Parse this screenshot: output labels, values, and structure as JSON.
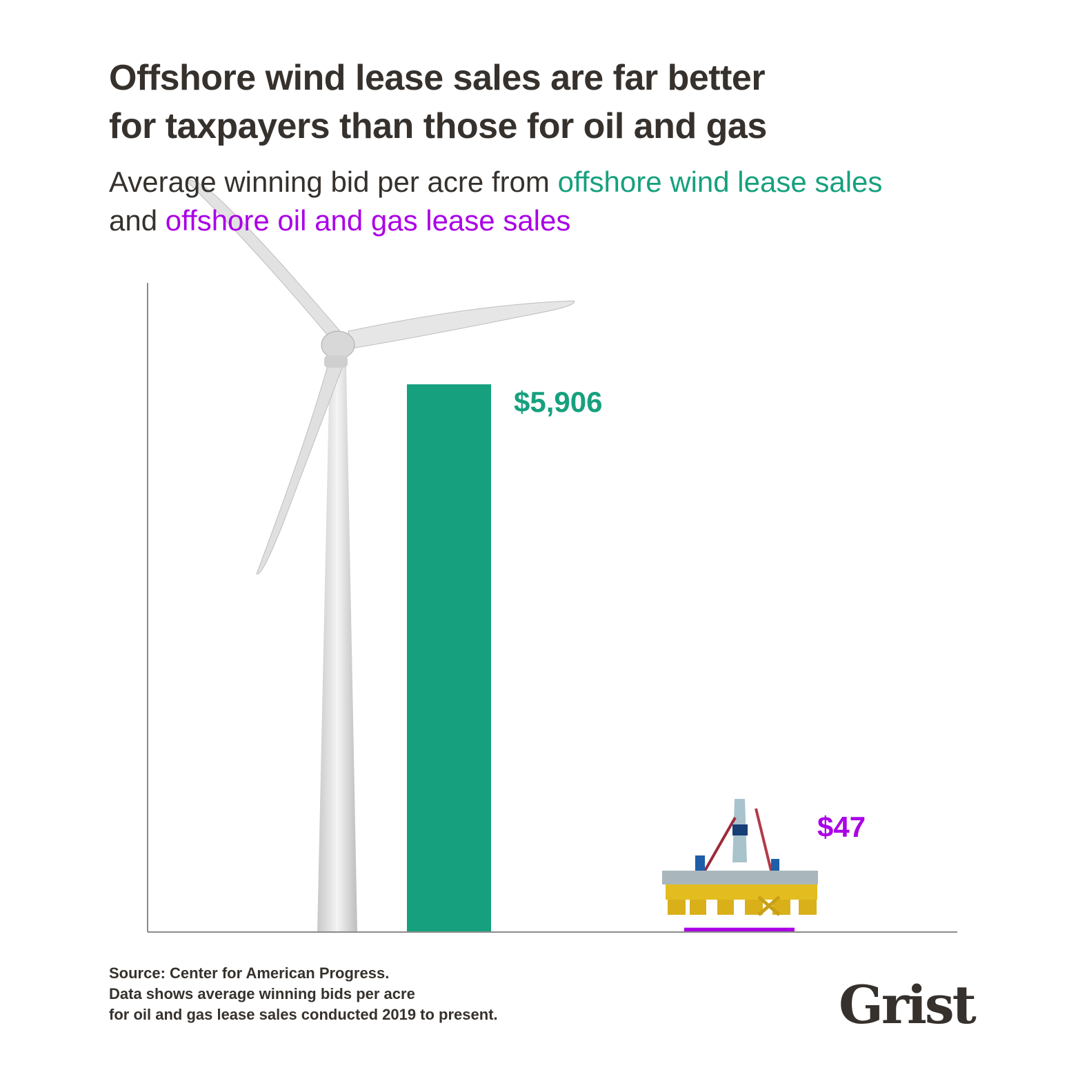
{
  "title_line1": "Offshore wind lease sales are far better",
  "title_line2": "for taxpayers than those for oil and gas",
  "subtitle": {
    "part1": "Average winning bid per acre from ",
    "wind": "offshore wind lease sales",
    "part2": "and ",
    "oil": "offshore oil and gas lease sales"
  },
  "chart_data": {
    "type": "bar",
    "categories": [
      "offshore wind lease sales",
      "offshore oil and gas lease sales"
    ],
    "values": [
      5906,
      47
    ],
    "data_labels": [
      "$5,906",
      "$47"
    ],
    "colors": [
      "#16a07e",
      "#aa00e6"
    ],
    "icons": [
      "wind-turbine-image",
      "oil-rig-image"
    ],
    "ylim": [
      0,
      7000
    ],
    "grid": false,
    "xlabel": "",
    "ylabel": ""
  },
  "source": {
    "line1": "Source: Center for American Progress.",
    "line2": "Data shows average winning bids per acre",
    "line3": "for oil and gas lease sales conducted 2019 to present."
  },
  "logo": "Grist"
}
